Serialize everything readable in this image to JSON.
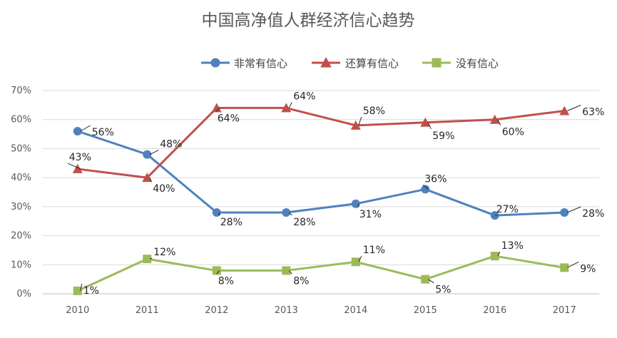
{
  "chart_data": {
    "type": "line",
    "title": "中国高净值人群经济信心趋势",
    "categories": [
      "2010",
      "2011",
      "2012",
      "2013",
      "2014",
      "2015",
      "2016",
      "2017"
    ],
    "y_ticks": [
      "0%",
      "10%",
      "20%",
      "30%",
      "40%",
      "50%",
      "60%",
      "70%"
    ],
    "ylim": [
      0,
      70
    ],
    "grid": true,
    "legend_position": "top",
    "series": [
      {
        "name": "非常有信心",
        "color": "#4f81bd",
        "marker": "circle",
        "values": [
          56,
          48,
          28,
          28,
          31,
          36,
          27,
          28
        ],
        "labels": [
          "56%",
          "48%",
          "28%",
          "28%",
          "31%",
          "36%",
          "27%",
          "28%"
        ]
      },
      {
        "name": "还算有信心",
        "color": "#c0504d",
        "marker": "triangle",
        "values": [
          43,
          40,
          64,
          64,
          58,
          59,
          60,
          63
        ],
        "labels": [
          "43%",
          "40%",
          "64%",
          "64%",
          "58%",
          "59%",
          "60%",
          "63%"
        ]
      },
      {
        "name": "没有信心",
        "color": "#9bbb59",
        "marker": "square",
        "values": [
          1,
          12,
          8,
          8,
          11,
          5,
          13,
          9
        ],
        "labels": [
          "1%",
          "12%",
          "8%",
          "8%",
          "11%",
          "5%",
          "13%",
          "9%"
        ]
      }
    ]
  }
}
